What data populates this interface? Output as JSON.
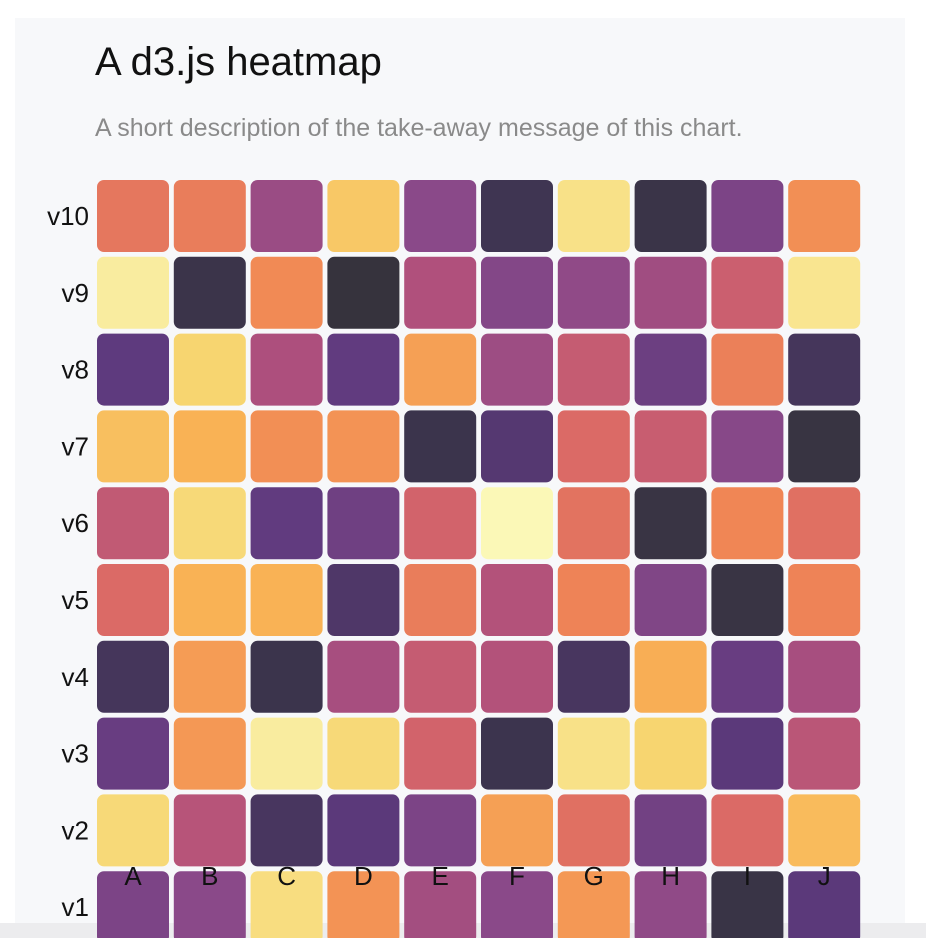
{
  "chart_data": {
    "type": "heatmap",
    "title": "A d3.js heatmap",
    "subtitle": "A short description of the take-away message of this chart.",
    "x_categories": [
      "A",
      "B",
      "C",
      "D",
      "E",
      "F",
      "G",
      "H",
      "I",
      "J"
    ],
    "y_categories": [
      "v1",
      "v2",
      "v3",
      "v4",
      "v5",
      "v6",
      "v7",
      "v8",
      "v9",
      "v10"
    ],
    "value_range": [
      0,
      100
    ],
    "colormap": "inferno",
    "values": [
      [
        34,
        38,
        92,
        75,
        46,
        38,
        76,
        40,
        10,
        24
      ],
      [
        91,
        52,
        18,
        24,
        34,
        78,
        65,
        31,
        63,
        84
      ],
      [
        28,
        76,
        96,
        91,
        60,
        14,
        93,
        90,
        24,
        53
      ],
      [
        17,
        77,
        13,
        47,
        56,
        51,
        18,
        81,
        28,
        47
      ],
      [
        63,
        82,
        82,
        20,
        69,
        51,
        71,
        35,
        9,
        71
      ],
      [
        55,
        91,
        26,
        30,
        60,
        99,
        66,
        9,
        72,
        65
      ],
      [
        85,
        82,
        74,
        75,
        13,
        22,
        63,
        57,
        37,
        8
      ],
      [
        25,
        90,
        49,
        26,
        78,
        44,
        56,
        29,
        70,
        17
      ],
      [
        96,
        12,
        73,
        5,
        50,
        36,
        40,
        45,
        58,
        94
      ],
      [
        67,
        69,
        43,
        87,
        38,
        15,
        93,
        11,
        34,
        74
      ]
    ]
  }
}
